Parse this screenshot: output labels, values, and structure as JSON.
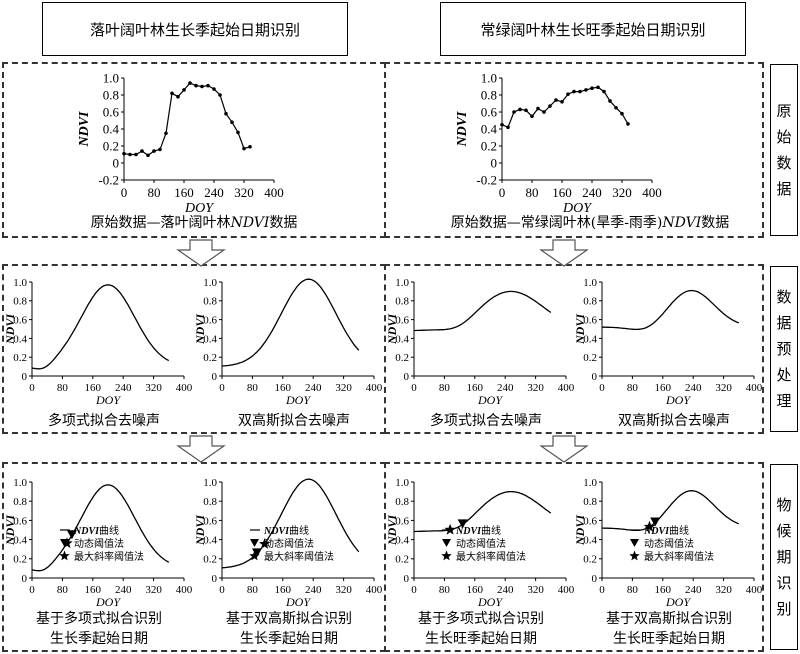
{
  "headers": {
    "left": "落叶阔叶林生长季起始日期识别",
    "right": "常绿阔叶林生长旺季起始日期识别"
  },
  "side_labels": {
    "raw": [
      "原",
      "始",
      "数",
      "据"
    ],
    "preprocess": [
      "数",
      "据",
      "预",
      "处",
      "理"
    ],
    "phenology": [
      "物",
      "候",
      "期",
      "识",
      "别"
    ]
  },
  "axis_labels": {
    "x": "DOY",
    "y": "NDVI"
  },
  "raw_charts": [
    {
      "caption_prefix": "原始数据—落叶阔叶林",
      "caption_italic": "NDVI",
      "caption_suffix": "数据",
      "x_ticks": [
        "0",
        "80",
        "160",
        "240",
        "320",
        "400"
      ],
      "y_ticks": [
        "1.0",
        "0.8",
        "0.6",
        "0.4",
        "0.2",
        "0",
        "-0.2"
      ],
      "points": [
        [
          0,
          0.11
        ],
        [
          16,
          0.1
        ],
        [
          32,
          0.1
        ],
        [
          48,
          0.14
        ],
        [
          64,
          0.09
        ],
        [
          80,
          0.14
        ],
        [
          96,
          0.16
        ],
        [
          112,
          0.35
        ],
        [
          128,
          0.82
        ],
        [
          144,
          0.78
        ],
        [
          160,
          0.86
        ],
        [
          176,
          0.94
        ],
        [
          192,
          0.91
        ],
        [
          208,
          0.9
        ],
        [
          224,
          0.91
        ],
        [
          240,
          0.87
        ],
        [
          256,
          0.8
        ],
        [
          272,
          0.58
        ],
        [
          288,
          0.48
        ],
        [
          304,
          0.36
        ],
        [
          320,
          0.17
        ],
        [
          336,
          0.19
        ]
      ]
    },
    {
      "caption_prefix": "原始数据—常绿阔叶林(旱季-雨季)",
      "caption_italic": "NDVI",
      "caption_suffix": "数据",
      "x_ticks": [
        "0",
        "80",
        "160",
        "240",
        "320",
        "400"
      ],
      "y_ticks": [
        "1.0",
        "0.8",
        "0.6",
        "0.4",
        "0.2",
        "0",
        "-0.2"
      ],
      "points": [
        [
          0,
          0.45
        ],
        [
          16,
          0.42
        ],
        [
          32,
          0.6
        ],
        [
          48,
          0.63
        ],
        [
          64,
          0.62
        ],
        [
          80,
          0.55
        ],
        [
          96,
          0.64
        ],
        [
          112,
          0.6
        ],
        [
          128,
          0.67
        ],
        [
          144,
          0.74
        ],
        [
          160,
          0.72
        ],
        [
          176,
          0.81
        ],
        [
          192,
          0.84
        ],
        [
          208,
          0.84
        ],
        [
          224,
          0.86
        ],
        [
          240,
          0.88
        ],
        [
          256,
          0.89
        ],
        [
          272,
          0.84
        ],
        [
          288,
          0.73
        ],
        [
          304,
          0.65
        ],
        [
          320,
          0.58
        ],
        [
          336,
          0.46
        ]
      ]
    }
  ],
  "small_ticks": {
    "x": [
      "0",
      "80",
      "160",
      "240",
      "320",
      "400"
    ],
    "y": [
      "1.0",
      "0.8",
      "0.6",
      "0.4",
      "0.2",
      "0"
    ]
  },
  "fit_captions": [
    "多项式拟合去噪声",
    "双高斯拟合去噪声",
    "多项式拟合去噪声",
    "双高斯拟合去噪声"
  ],
  "fit_curves": [
    {
      "kind": "gauss",
      "base": 0.1,
      "amp": 0.87,
      "mu": 200,
      "sigma": 70,
      "dip": true
    },
    {
      "kind": "gauss",
      "base": 0.1,
      "amp": 0.93,
      "mu": 228,
      "sigma": 72,
      "dip": false
    },
    {
      "kind": "broad",
      "base": 0.48,
      "amp": 0.42,
      "mu": 255,
      "sigma": 85,
      "dip": false
    },
    {
      "kind": "broad",
      "base": 0.52,
      "amp": 0.39,
      "mu": 235,
      "sigma": 60,
      "dip": false
    }
  ],
  "pheno_captions": [
    [
      "基于多项式拟合识别",
      "生长季起始日期"
    ],
    [
      "基于双高斯拟合识别",
      "生长季起始日期"
    ],
    [
      "基于多项式拟合识别",
      "生长旺季起始日期"
    ],
    [
      "基于双高斯拟合识别",
      "生长旺季起始日期"
    ]
  ],
  "legend": {
    "curve_italic": "NDVI",
    "curve_suffix": "曲线",
    "dynamic": "动态阈值法",
    "max_slope": "最大斜率阈值法"
  },
  "markers": [
    {
      "dynamic": 105,
      "max_slope": 92
    },
    {
      "dynamic": 92,
      "max_slope": 112
    },
    {
      "dynamic": 128,
      "max_slope": 95
    },
    {
      "dynamic": 140,
      "max_slope": 125
    }
  ]
}
